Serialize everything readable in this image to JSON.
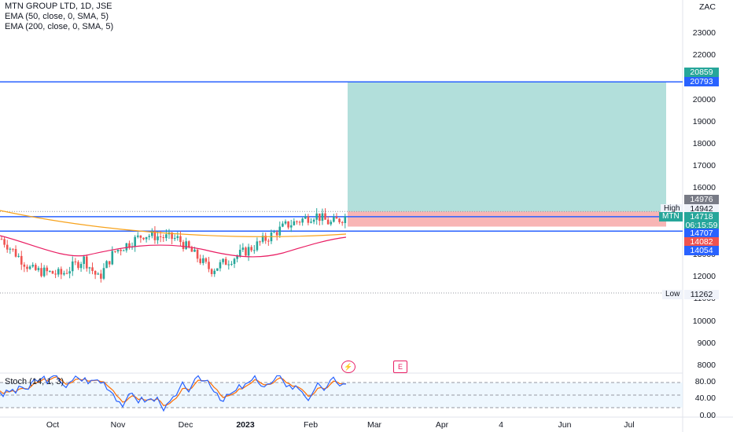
{
  "header": {
    "title": "MTN GROUP LTD, 1D, JSE",
    "indicators": [
      "EMA (50, close, 0, SMA, 5)",
      "EMA (200, close, 0, SMA, 5)"
    ]
  },
  "currency": "ZAC",
  "price_axis": {
    "ticks": [
      "23000",
      "22000",
      "21000",
      "20000",
      "19000",
      "18000",
      "17000",
      "16000",
      "15000",
      "14000",
      "13000",
      "12000",
      "11000",
      "10000",
      "9000",
      "8000"
    ]
  },
  "time_axis": {
    "ticks": [
      "Oct",
      "Nov",
      "Dec",
      "2023",
      "Feb",
      "Mar",
      "Apr",
      "4",
      "Jun",
      "Jul"
    ]
  },
  "badges": {
    "target_top": "20859",
    "target": "20793",
    "high_value": "14976",
    "high_label": "High",
    "high_price": "14942",
    "symbol": "MTN",
    "last_price": "14718",
    "countdown": "06:15:59",
    "entry": "14707",
    "stop": "14082",
    "support": "14054",
    "low_label": "Low",
    "low_price": "11262"
  },
  "events": {
    "dividend_icon": "lightning-icon",
    "earnings_label": "E"
  },
  "stoch": {
    "label": "Stoch (14, 1, 3)",
    "ticks": [
      "80.00",
      "40.00",
      "0.00"
    ]
  },
  "colors": {
    "bull": "#26a69a",
    "bear": "#ef5350",
    "ema50": "#e91e63",
    "ema200": "#f7a21b",
    "line": "#2962ff",
    "profit": "#b2dfdb",
    "loss": "#f8b5b5",
    "k": "#2962ff",
    "d": "#ff6d00"
  }
}
